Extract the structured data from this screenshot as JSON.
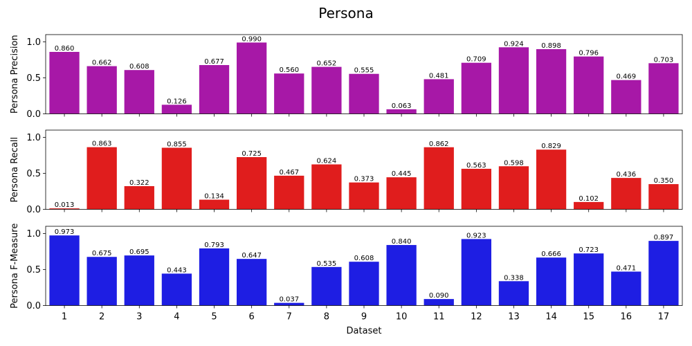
{
  "chart_data": {
    "title": "Persona",
    "xlabel": "Dataset",
    "categories": [
      "1",
      "2",
      "3",
      "4",
      "5",
      "6",
      "7",
      "8",
      "9",
      "10",
      "11",
      "12",
      "13",
      "14",
      "15",
      "16",
      "17"
    ],
    "panels": [
      {
        "type": "bar",
        "ylabel": "Persona Precision",
        "color": "#a718a7",
        "ylim": [
          0,
          1.1
        ],
        "yticks": [
          "0.0",
          "0.5",
          "1.0"
        ],
        "values": [
          0.86,
          0.662,
          0.608,
          0.126,
          0.677,
          0.99,
          0.56,
          0.652,
          0.555,
          0.063,
          0.481,
          0.709,
          0.924,
          0.898,
          0.796,
          0.469,
          0.703
        ],
        "labels": [
          "0.860",
          "0.662",
          "0.608",
          "0.126",
          "0.677",
          "0.990",
          "0.560",
          "0.652",
          "0.555",
          "0.063",
          "0.481",
          "0.709",
          "0.924",
          "0.898",
          "0.796",
          "0.469",
          "0.703"
        ]
      },
      {
        "type": "bar",
        "ylabel": "Persona Recall",
        "color": "#e01d1d",
        "ylim": [
          0,
          1.1
        ],
        "yticks": [
          "0.0",
          "0.5",
          "1.0"
        ],
        "values": [
          0.013,
          0.863,
          0.322,
          0.855,
          0.134,
          0.725,
          0.467,
          0.624,
          0.373,
          0.445,
          0.862,
          0.563,
          0.598,
          0.829,
          0.102,
          0.436,
          0.35
        ],
        "labels": [
          "0.013",
          "0.863",
          "0.322",
          "0.855",
          "0.134",
          "0.725",
          "0.467",
          "0.624",
          "0.373",
          "0.445",
          "0.862",
          "0.563",
          "0.598",
          "0.829",
          "0.102",
          "0.436",
          "0.350"
        ]
      },
      {
        "type": "bar",
        "ylabel": "Persona F-Measure",
        "color": "#1e1ee3",
        "ylim": [
          0,
          1.1
        ],
        "yticks": [
          "0.0",
          "0.5",
          "1.0"
        ],
        "values": [
          0.973,
          0.675,
          0.695,
          0.443,
          0.793,
          0.647,
          0.037,
          0.535,
          0.608,
          0.84,
          0.09,
          0.923,
          0.338,
          0.666,
          0.723,
          0.471,
          0.897
        ],
        "labels": [
          "0.973",
          "0.675",
          "0.695",
          "0.443",
          "0.793",
          "0.647",
          "0.037",
          "0.535",
          "0.608",
          "0.840",
          "0.090",
          "0.923",
          "0.338",
          "0.666",
          "0.723",
          "0.471",
          "0.897"
        ]
      }
    ]
  }
}
